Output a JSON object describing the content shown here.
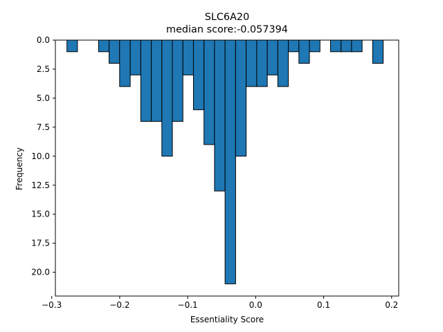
{
  "chart_data": {
    "type": "bar",
    "title": "SLC6A20",
    "subtitle": "median score:-0.057394",
    "xlabel": "Essentiality Score",
    "ylabel": "Frequency",
    "x_ticks": [
      -0.3,
      -0.2,
      -0.1,
      0.0,
      0.1,
      0.2
    ],
    "x_tick_labels": [
      "−0.3",
      "−0.2",
      "−0.1",
      "0.0",
      "0.1",
      "0.2"
    ],
    "y_ticks": [
      0,
      2.5,
      5,
      7.5,
      10,
      12.5,
      15,
      17.5,
      20
    ],
    "y_tick_labels": [
      "0.0",
      "2.5",
      "5.0",
      "7.5",
      "10.0",
      "12.5",
      "15.0",
      "17.5",
      "20.0"
    ],
    "xlim": [
      -0.2946,
      0.2104
    ],
    "ylim": [
      0,
      22.05
    ],
    "y_inverted": true,
    "bar_color": "#1f77b4",
    "edge_color": "#000000",
    "bins": [
      {
        "x0": -0.2776,
        "x1": -0.2621,
        "count": 1
      },
      {
        "x0": -0.2466,
        "x1": -0.2311,
        "count": 0
      },
      {
        "x0": -0.2311,
        "x1": -0.2156,
        "count": 1
      },
      {
        "x0": -0.2156,
        "x1": -0.2001,
        "count": 2
      },
      {
        "x0": -0.2001,
        "x1": -0.1845,
        "count": 4
      },
      {
        "x0": -0.1845,
        "x1": -0.169,
        "count": 3
      },
      {
        "x0": -0.169,
        "x1": -0.1535,
        "count": 7
      },
      {
        "x0": -0.1535,
        "x1": -0.138,
        "count": 7
      },
      {
        "x0": -0.138,
        "x1": -0.1225,
        "count": 10
      },
      {
        "x0": -0.1225,
        "x1": -0.107,
        "count": 7
      },
      {
        "x0": -0.107,
        "x1": -0.0915,
        "count": 3
      },
      {
        "x0": -0.0915,
        "x1": -0.076,
        "count": 6
      },
      {
        "x0": -0.076,
        "x1": -0.0605,
        "count": 9
      },
      {
        "x0": -0.0605,
        "x1": -0.045,
        "count": 13
      },
      {
        "x0": -0.045,
        "x1": -0.0295,
        "count": 21
      },
      {
        "x0": -0.0295,
        "x1": -0.014,
        "count": 10
      },
      {
        "x0": -0.014,
        "x1": 0.0016,
        "count": 4
      },
      {
        "x0": 0.0016,
        "x1": 0.0171,
        "count": 4
      },
      {
        "x0": 0.0171,
        "x1": 0.0326,
        "count": 3
      },
      {
        "x0": 0.0326,
        "x1": 0.0481,
        "count": 4
      },
      {
        "x0": 0.0481,
        "x1": 0.0636,
        "count": 1
      },
      {
        "x0": 0.0636,
        "x1": 0.0791,
        "count": 2
      },
      {
        "x0": 0.0791,
        "x1": 0.0946,
        "count": 1
      },
      {
        "x0": 0.1101,
        "x1": 0.1256,
        "count": 1
      },
      {
        "x0": 0.1256,
        "x1": 0.1411,
        "count": 1
      },
      {
        "x0": 0.1411,
        "x1": 0.1566,
        "count": 1
      },
      {
        "x0": 0.1721,
        "x1": 0.1876,
        "count": 2
      }
    ]
  }
}
